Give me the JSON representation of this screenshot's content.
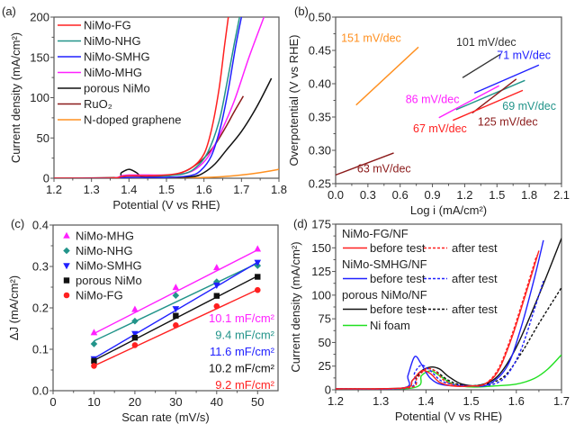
{
  "chart_data": [
    {
      "id": "a",
      "panel_label": "(a)",
      "type": "line",
      "xlabel": "Potential (V vs RHE)",
      "ylabel": "Current density (mA/cm²)",
      "xlim": [
        1.2,
        1.8
      ],
      "ylim": [
        0,
        200
      ],
      "xticks": [
        1.2,
        1.3,
        1.4,
        1.5,
        1.6,
        1.7,
        1.8
      ],
      "xtick_labels": [
        "1.2",
        "1.3",
        "1.4",
        "1.5",
        "1.6",
        "1.7",
        "1.8"
      ],
      "yticks": [
        0,
        50,
        100,
        150,
        200
      ],
      "ytick_labels": [
        "0",
        "50",
        "100",
        "150",
        "200"
      ],
      "legend_position": "top-left",
      "series": [
        {
          "name": "NiMo-FG",
          "color": "#ff2020",
          "x": [
            1.2,
            1.35,
            1.38,
            1.4,
            1.45,
            1.5,
            1.54,
            1.57,
            1.6,
            1.62,
            1.64,
            1.655,
            1.665
          ],
          "y": [
            0,
            0,
            2,
            3,
            3,
            4,
            7,
            14,
            30,
            60,
            110,
            165,
            200
          ]
        },
        {
          "name": "NiMo-NHG",
          "color": "#22948a",
          "x": [
            1.2,
            1.35,
            1.38,
            1.4,
            1.45,
            1.5,
            1.55,
            1.58,
            1.61,
            1.64,
            1.66,
            1.68,
            1.695
          ],
          "y": [
            0,
            0,
            2,
            3,
            3,
            3,
            6,
            14,
            32,
            70,
            115,
            165,
            200
          ]
        },
        {
          "name": "NiMo-SMHG",
          "color": "#2020ff",
          "x": [
            1.2,
            1.35,
            1.4,
            1.45,
            1.5,
            1.56,
            1.59,
            1.62,
            1.645,
            1.665,
            1.685,
            1.7
          ],
          "y": [
            0,
            0,
            1,
            1,
            1,
            3,
            9,
            28,
            65,
            110,
            165,
            200
          ]
        },
        {
          "name": "NiMo-MHG",
          "color": "#ff20ff",
          "x": [
            1.2,
            1.35,
            1.38,
            1.4,
            1.45,
            1.5,
            1.55,
            1.58,
            1.61,
            1.64,
            1.68,
            1.72,
            1.76
          ],
          "y": [
            0,
            0,
            3,
            4,
            4,
            4,
            6,
            12,
            26,
            52,
            95,
            150,
            200
          ]
        },
        {
          "name": "porous NiMo",
          "color": "#111111",
          "x": [
            1.2,
            1.36,
            1.38,
            1.4,
            1.42,
            1.44,
            1.5,
            1.57,
            1.6,
            1.63,
            1.66,
            1.7,
            1.74,
            1.78
          ],
          "y": [
            0,
            0,
            7,
            11,
            7,
            1,
            1,
            2,
            7,
            18,
            35,
            58,
            88,
            124
          ]
        },
        {
          "name": "RuO₂",
          "color": "#8b1a1a",
          "x": [
            1.2,
            1.4,
            1.5,
            1.54,
            1.57,
            1.6,
            1.63,
            1.66,
            1.68,
            1.705
          ],
          "y": [
            0,
            1,
            3,
            7,
            14,
            25,
            42,
            65,
            82,
            102
          ]
        },
        {
          "name": "N-doped graphene",
          "color": "#ff9020",
          "x": [
            1.2,
            1.5,
            1.6,
            1.65,
            1.7,
            1.75,
            1.8
          ],
          "y": [
            0,
            0,
            1,
            2,
            4,
            7,
            11
          ]
        }
      ]
    },
    {
      "id": "b",
      "panel_label": "(b)",
      "type": "line",
      "xlabel": "Log i (mA/cm²)",
      "ylabel": "Overpotential (V vs RHE)",
      "xlim": [
        0.0,
        2.1
      ],
      "ylim": [
        0.25,
        0.5
      ],
      "xticks": [
        0.0,
        0.3,
        0.6,
        0.9,
        1.2,
        1.5,
        1.8,
        2.1
      ],
      "xtick_labels": [
        "0.0",
        "0.3",
        "0.6",
        "0.9",
        "1.2",
        "1.5",
        "1.8",
        "2.1"
      ],
      "yticks": [
        0.25,
        0.3,
        0.35,
        0.4,
        0.45,
        0.5
      ],
      "ytick_labels": [
        "0.25",
        "0.30",
        "0.35",
        "0.40",
        "0.45",
        "0.50"
      ],
      "series": [
        {
          "name": "N-doped graphene",
          "color": "#ff9020",
          "x": [
            0.19,
            0.77
          ],
          "y": [
            0.368,
            0.455
          ],
          "annotation": "151 mV/dec",
          "label_at": [
            0.33,
            0.463
          ]
        },
        {
          "name": "porous NiMo",
          "color": "#333333",
          "x": [
            1.18,
            1.53
          ],
          "y": [
            0.409,
            0.444
          ],
          "annotation": "101 mV/dec",
          "label_at": [
            1.4,
            0.457
          ]
        },
        {
          "name": "NiMo-SMHG",
          "color": "#2020ff",
          "x": [
            1.29,
            1.89
          ],
          "y": [
            0.386,
            0.428
          ],
          "annotation": "71 mV/dec",
          "label_at": [
            1.75,
            0.437
          ]
        },
        {
          "name": "NiMo-MHG",
          "color": "#ff20ff",
          "x": [
            0.96,
            1.52
          ],
          "y": [
            0.349,
            0.397
          ],
          "annotation": "86 mV/dec",
          "label_at": [
            0.9,
            0.371
          ]
        },
        {
          "name": "NiMo-NHG",
          "color": "#22948a",
          "x": [
            1.12,
            1.76
          ],
          "y": [
            0.361,
            0.405
          ],
          "annotation": "69 mV/dec",
          "label_at": [
            1.8,
            0.361
          ]
        },
        {
          "name": "RuO₂",
          "color": "#8b1a1a",
          "x": [
            1.27,
            1.68
          ],
          "y": [
            0.356,
            0.407
          ],
          "annotation": "125 mV/dec",
          "label_at": [
            1.6,
            0.337
          ]
        },
        {
          "name": "NiMo-FG",
          "color": "#ff2020",
          "x": [
            1.09,
            1.74
          ],
          "y": [
            0.345,
            0.39
          ],
          "annotation": "67 mV/dec",
          "label_at": [
            0.97,
            0.327
          ]
        },
        {
          "name": "RuO₂ (low)",
          "color": "#8b1a1a",
          "x": [
            0.0,
            0.54
          ],
          "y": [
            0.263,
            0.296
          ],
          "annotation": "63 mV/dec",
          "label_at": [
            0.45,
            0.267
          ]
        }
      ]
    },
    {
      "id": "c",
      "panel_label": "(c)",
      "type": "scatter",
      "xlabel": "Scan rate (mV/s)",
      "ylabel": "ΔJ (mA/cm²)",
      "xlim": [
        0,
        55
      ],
      "ylim": [
        0.0,
        0.4
      ],
      "xticks": [
        0,
        10,
        20,
        30,
        40,
        50
      ],
      "xtick_labels": [
        "0",
        "10",
        "20",
        "30",
        "40",
        "50"
      ],
      "yticks": [
        0.0,
        0.1,
        0.2,
        0.3,
        0.4
      ],
      "ytick_labels": [
        "0.0",
        "0.1",
        "0.2",
        "0.3",
        "0.4"
      ],
      "legend_position": "top-left",
      "x": [
        10,
        20,
        30,
        40,
        50
      ],
      "series": [
        {
          "name": "NiMo-MHG",
          "color": "#ff20ff",
          "marker": "triangle-up",
          "values": [
            0.14,
            0.196,
            0.249,
            0.297,
            0.342
          ],
          "fit": [
            0.138,
            0.34
          ],
          "capacitance": "10.1 mF/cm²"
        },
        {
          "name": "NiMo-NHG",
          "color": "#22948a",
          "marker": "diamond",
          "values": [
            0.113,
            0.168,
            0.23,
            0.263,
            0.302
          ],
          "fit": [
            0.12,
            0.308
          ],
          "capacitance": "9.4 mF/cm²"
        },
        {
          "name": "NiMo-SMHG",
          "color": "#2020ff",
          "marker": "triangle-down",
          "values": [
            0.077,
            0.138,
            0.198,
            0.255,
            0.31
          ],
          "fit": [
            0.078,
            0.31
          ],
          "capacitance": "11.6 mF/cm²"
        },
        {
          "name": "porous NiMo",
          "color": "#111111",
          "marker": "square",
          "values": [
            0.072,
            0.128,
            0.181,
            0.229,
            0.275
          ],
          "fit": [
            0.073,
            0.277
          ],
          "capacitance": "10.2 mF/cm²"
        },
        {
          "name": "NiMo-FG",
          "color": "#ff2020",
          "marker": "circle",
          "values": [
            0.06,
            0.11,
            0.158,
            0.204,
            0.243
          ],
          "fit": [
            0.06,
            0.244
          ],
          "capacitance": "9.2 mF/cm²"
        }
      ]
    },
    {
      "id": "d",
      "panel_label": "(d)",
      "type": "line",
      "xlabel": "Potential (V vs RHE)",
      "ylabel": "Current density (mA/cm²)",
      "xlim": [
        1.2,
        1.7
      ],
      "ylim": [
        0,
        175
      ],
      "xticks": [
        1.2,
        1.3,
        1.4,
        1.5,
        1.6,
        1.7
      ],
      "xtick_labels": [
        "1.2",
        "1.3",
        "1.4",
        "1.5",
        "1.6",
        "1.7"
      ],
      "yticks": [
        0,
        25,
        50,
        75,
        100,
        125,
        150,
        175
      ],
      "ytick_labels": [
        "0",
        "25",
        "50",
        "75",
        "100",
        "125",
        "150",
        "175"
      ],
      "legend_position": "top-left",
      "legend_groups": [
        {
          "title": "NiMo-FG/NF",
          "color": "#ff2020",
          "before": "before test",
          "after": "after test"
        },
        {
          "title": "NiMo-SMHG/NF",
          "color": "#2020ff",
          "before": "before test",
          "after": "after test"
        },
        {
          "title": "porous NiMo/NF",
          "color": "#111111",
          "before": "before test",
          "after": "after test"
        },
        {
          "title": "Ni foam",
          "color": "#20e020"
        }
      ],
      "series": [
        {
          "name": "NiMo-FG/NF before test",
          "color": "#ff2020",
          "dash": false,
          "x": [
            1.2,
            1.35,
            1.37,
            1.39,
            1.41,
            1.43,
            1.46,
            1.5,
            1.53,
            1.56,
            1.59,
            1.62,
            1.65
          ],
          "y": [
            1,
            2,
            10,
            20,
            17,
            8,
            4,
            4,
            6,
            20,
            55,
            100,
            147
          ]
        },
        {
          "name": "NiMo-FG/NF after test",
          "color": "#ff2020",
          "dash": true,
          "x": [
            1.2,
            1.36,
            1.38,
            1.4,
            1.42,
            1.44,
            1.47,
            1.5,
            1.53,
            1.56,
            1.59,
            1.62,
            1.645
          ],
          "y": [
            1,
            2,
            12,
            22,
            20,
            10,
            4,
            4,
            6,
            22,
            58,
            103,
            142
          ]
        },
        {
          "name": "NiMo-SMHG/NF before test",
          "color": "#2020ff",
          "dash": false,
          "x": [
            1.2,
            1.35,
            1.36,
            1.375,
            1.39,
            1.41,
            1.44,
            1.5,
            1.54,
            1.58,
            1.61,
            1.64,
            1.66
          ],
          "y": [
            1,
            2,
            15,
            35,
            27,
            12,
            5,
            4,
            6,
            25,
            65,
            118,
            158
          ]
        },
        {
          "name": "NiMo-SMHG/NF after test",
          "color": "#2020ff",
          "dash": true,
          "x": [
            1.2,
            1.36,
            1.375,
            1.39,
            1.41,
            1.44,
            1.5,
            1.55,
            1.58,
            1.61,
            1.64,
            1.66
          ],
          "y": [
            1,
            2,
            18,
            26,
            20,
            8,
            4,
            6,
            16,
            42,
            85,
            115
          ]
        },
        {
          "name": "porous NiMo/NF before test",
          "color": "#111111",
          "dash": false,
          "x": [
            1.2,
            1.35,
            1.37,
            1.39,
            1.41,
            1.43,
            1.45,
            1.48,
            1.52,
            1.56,
            1.6,
            1.65,
            1.7
          ],
          "y": [
            1,
            2,
            10,
            20,
            24,
            22,
            14,
            6,
            5,
            15,
            45,
            100,
            160
          ]
        },
        {
          "name": "porous NiMo/NF after test",
          "color": "#111111",
          "dash": true,
          "x": [
            1.2,
            1.36,
            1.38,
            1.4,
            1.42,
            1.45,
            1.48,
            1.52,
            1.57,
            1.61,
            1.65,
            1.7
          ],
          "y": [
            1,
            2,
            14,
            22,
            20,
            10,
            5,
            5,
            13,
            38,
            70,
            108
          ]
        },
        {
          "name": "Ni foam",
          "color": "#20e020",
          "dash": false,
          "x": [
            1.2,
            1.37,
            1.39,
            1.41,
            1.43,
            1.46,
            1.5,
            1.55,
            1.6,
            1.64,
            1.67,
            1.7
          ],
          "y": [
            0,
            2,
            15,
            20,
            15,
            6,
            3,
            4,
            6,
            12,
            22,
            37
          ]
        }
      ]
    }
  ]
}
